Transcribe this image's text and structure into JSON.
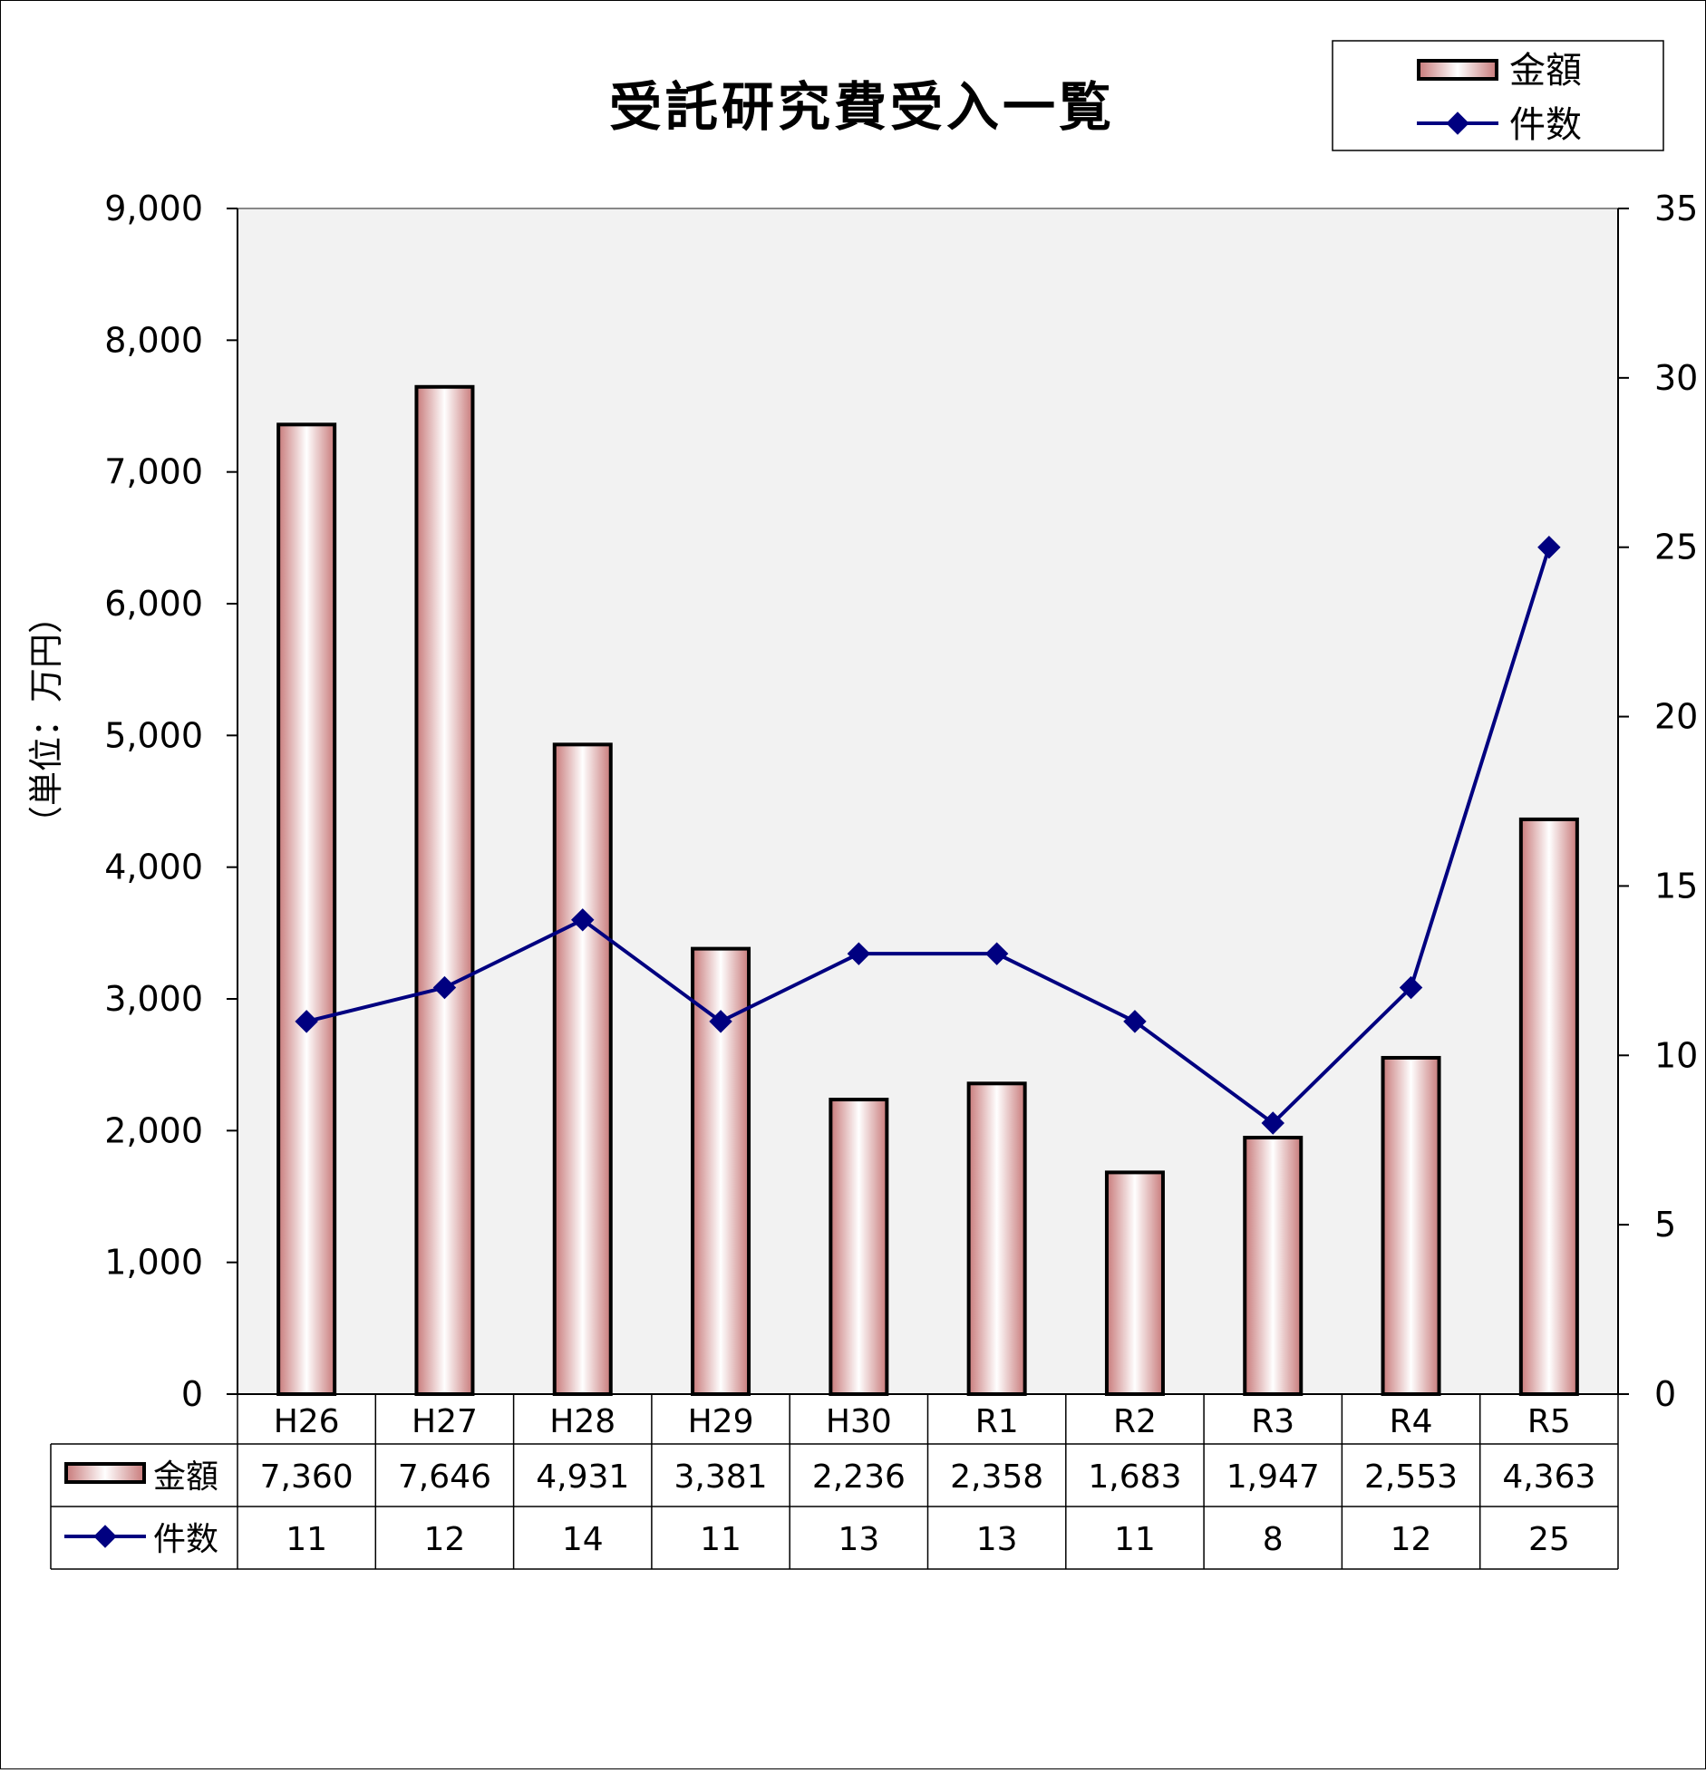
{
  "chart_data": {
    "type": "bar",
    "title": "受託研究費受入一覧",
    "ylabel": "（単位：万円）",
    "categories": [
      "H26",
      "H27",
      "H28",
      "H29",
      "H30",
      "R1",
      "R2",
      "R3",
      "R4",
      "R5"
    ],
    "series": [
      {
        "name": "金額",
        "type": "bar",
        "axis": "left",
        "values": [
          7360,
          7646,
          4931,
          3381,
          2236,
          2358,
          1683,
          1947,
          2553,
          4363
        ],
        "labels": [
          "7,360",
          "7,646",
          "4,931",
          "3,381",
          "2,236",
          "2,358",
          "1,683",
          "1,947",
          "2,553",
          "4,363"
        ]
      },
      {
        "name": "件数",
        "type": "line",
        "axis": "right",
        "values": [
          11,
          12,
          14,
          11,
          13,
          13,
          11,
          8,
          12,
          25
        ],
        "labels": [
          "11",
          "12",
          "14",
          "11",
          "13",
          "13",
          "11",
          "8",
          "12",
          "25"
        ]
      }
    ],
    "left_axis": {
      "ylim": [
        0,
        9000
      ],
      "ticks": [
        0,
        1000,
        2000,
        3000,
        4000,
        5000,
        6000,
        7000,
        8000,
        9000
      ],
      "tick_labels": [
        "0",
        "1,000",
        "2,000",
        "3,000",
        "4,000",
        "5,000",
        "6,000",
        "7,000",
        "8,000",
        "9,000"
      ]
    },
    "right_axis": {
      "ylim": [
        0,
        35
      ],
      "ticks": [
        0,
        5,
        10,
        15,
        20,
        25,
        30,
        35
      ],
      "tick_labels": [
        "0",
        "5",
        "10",
        "15",
        "20",
        "25",
        "30",
        "35"
      ]
    },
    "grid": false,
    "legend": "top-right",
    "data_table": true,
    "colors": {
      "bar_edge": "#c87a7a",
      "bar_highlight": "#ffffff",
      "bar_outline": "#000000",
      "line": "#000080",
      "plot_bg": "#f2f2f2"
    }
  }
}
